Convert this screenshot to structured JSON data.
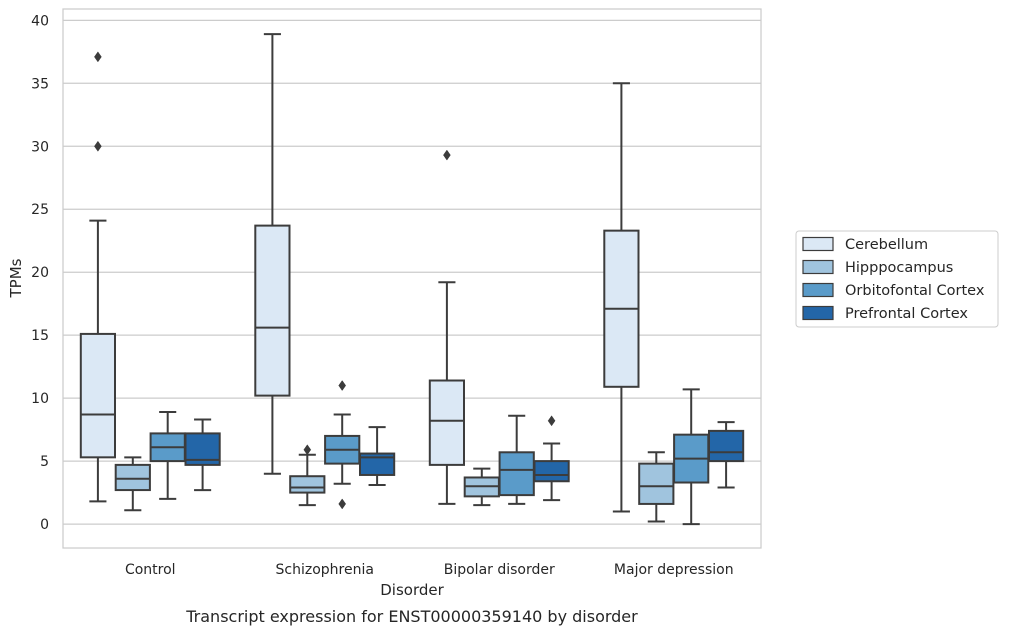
{
  "caption": "Transcript expression for ENST00000359140 by disorder",
  "chart_data": {
    "type": "boxplot",
    "title": "",
    "xlabel": "Disorder",
    "ylabel": "TPMs",
    "ylim": [
      -1.9,
      40.9
    ],
    "yticks": [
      0,
      5,
      10,
      15,
      20,
      25,
      30,
      35,
      40
    ],
    "grid": true,
    "legend_position": "right",
    "categories": [
      "Control",
      "Schizophrenia",
      "Bipolar disorder",
      "Major depression"
    ],
    "series": [
      {
        "name": "Cerebellum",
        "color": "#dbe8f5",
        "boxes": [
          {
            "whisker_low": 1.8,
            "q1": 5.3,
            "median": 8.7,
            "q3": 15.1,
            "whisker_high": 24.1,
            "outliers": [
              30.0,
              37.1
            ]
          },
          {
            "whisker_low": 4.0,
            "q1": 10.2,
            "median": 15.6,
            "q3": 23.7,
            "whisker_high": 38.9,
            "outliers": []
          },
          {
            "whisker_low": 1.6,
            "q1": 4.7,
            "median": 8.2,
            "q3": 11.4,
            "whisker_high": 19.2,
            "outliers": [
              29.3
            ]
          },
          {
            "whisker_low": 1.0,
            "q1": 10.9,
            "median": 17.1,
            "q3": 23.3,
            "whisker_high": 35.0,
            "outliers": []
          }
        ]
      },
      {
        "name": "Hipppocampus",
        "color": "#a0c4de",
        "boxes": [
          {
            "whisker_low": 1.1,
            "q1": 2.7,
            "median": 3.6,
            "q3": 4.7,
            "whisker_high": 5.3,
            "outliers": []
          },
          {
            "whisker_low": 1.5,
            "q1": 2.5,
            "median": 2.9,
            "q3": 3.8,
            "whisker_high": 5.5,
            "outliers": [
              5.9
            ]
          },
          {
            "whisker_low": 1.5,
            "q1": 2.2,
            "median": 3.0,
            "q3": 3.7,
            "whisker_high": 4.4,
            "outliers": []
          },
          {
            "whisker_low": 0.2,
            "q1": 1.6,
            "median": 3.0,
            "q3": 4.8,
            "whisker_high": 5.7,
            "outliers": []
          }
        ]
      },
      {
        "name": "Orbitofontal Cortex",
        "color": "#5a9bc9",
        "boxes": [
          {
            "whisker_low": 2.0,
            "q1": 5.0,
            "median": 6.1,
            "q3": 7.2,
            "whisker_high": 8.9,
            "outliers": []
          },
          {
            "whisker_low": 3.2,
            "q1": 4.8,
            "median": 5.9,
            "q3": 7.0,
            "whisker_high": 8.7,
            "outliers": [
              11.0,
              1.6
            ]
          },
          {
            "whisker_low": 1.6,
            "q1": 2.3,
            "median": 4.3,
            "q3": 5.7,
            "whisker_high": 8.6,
            "outliers": []
          },
          {
            "whisker_low": 0.0,
            "q1": 3.3,
            "median": 5.2,
            "q3": 7.1,
            "whisker_high": 10.7,
            "outliers": []
          }
        ]
      },
      {
        "name": "Prefrontal Cortex",
        "color": "#2366a8",
        "boxes": [
          {
            "whisker_low": 2.7,
            "q1": 4.7,
            "median": 5.1,
            "q3": 7.2,
            "whisker_high": 8.3,
            "outliers": []
          },
          {
            "whisker_low": 3.1,
            "q1": 3.9,
            "median": 5.3,
            "q3": 5.6,
            "whisker_high": 7.7,
            "outliers": []
          },
          {
            "whisker_low": 1.9,
            "q1": 3.4,
            "median": 3.9,
            "q3": 5.0,
            "whisker_high": 6.4,
            "outliers": [
              8.2
            ]
          },
          {
            "whisker_low": 2.9,
            "q1": 5.0,
            "median": 5.7,
            "q3": 7.4,
            "whisker_high": 8.1,
            "outliers": []
          }
        ]
      }
    ]
  }
}
